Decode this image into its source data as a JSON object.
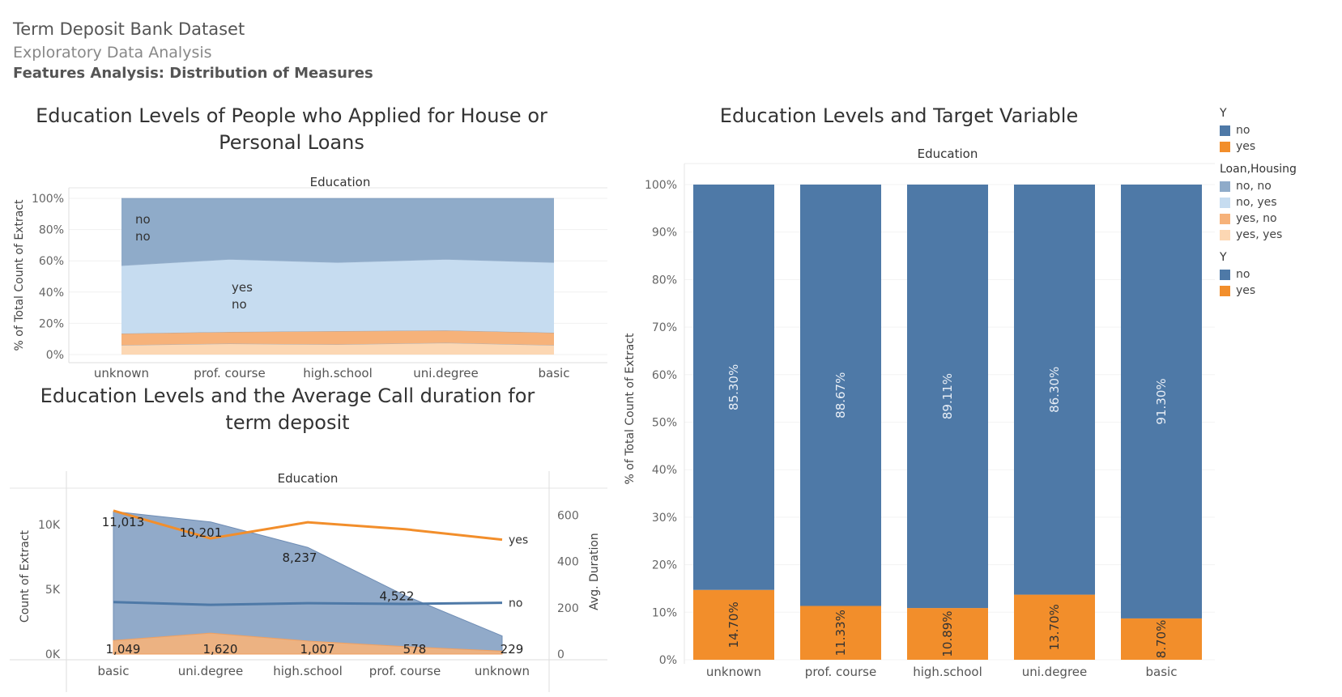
{
  "header": {
    "title": "Term Deposit Bank Dataset",
    "subtitle": "Exploratory Data Analysis",
    "section": "Features Analysis: Distribution of Measures"
  },
  "colors": {
    "no": "#4e79a7",
    "yes": "#f28e2b",
    "no_no": "#8fabc9",
    "no_yes": "#c6dcf0",
    "yes_no": "#f6b27a",
    "yes_yes": "#fcd7b3"
  },
  "legend": {
    "groups": [
      {
        "title": "Y",
        "items": [
          {
            "label": "no",
            "color": "#4e79a7"
          },
          {
            "label": "yes",
            "color": "#f28e2b"
          }
        ]
      },
      {
        "title": "Loan,Housing",
        "items": [
          {
            "label": "no, no",
            "color": "#8fabc9"
          },
          {
            "label": "no, yes",
            "color": "#c6dcf0"
          },
          {
            "label": "yes, no",
            "color": "#f6b27a"
          },
          {
            "label": "yes, yes",
            "color": "#fcd7b3"
          }
        ]
      },
      {
        "title": "Y",
        "items": [
          {
            "label": "no",
            "color": "#4e79a7"
          },
          {
            "label": "yes",
            "color": "#f28e2b"
          }
        ]
      }
    ]
  },
  "chart_data": [
    {
      "type": "area",
      "title": "Education Levels of People who Applied for House or Personal Loans",
      "xheader": "Education",
      "ylabel": "% of Total Count of Extract",
      "categories": [
        "unknown",
        "prof. course",
        "high.school",
        "uni.degree",
        "basic"
      ],
      "yticks": [
        "0%",
        "20%",
        "40%",
        "60%",
        "80%",
        "100%"
      ],
      "ylim": [
        0,
        100
      ],
      "series": [
        {
          "name": "yes, yes",
          "values": [
            6,
            7,
            6.5,
            7.5,
            6
          ]
        },
        {
          "name": "yes, no",
          "values": [
            7.5,
            7.5,
            8.5,
            8,
            8
          ]
        },
        {
          "name": "no, yes",
          "values": [
            43.5,
            46.5,
            44,
            45.5,
            45
          ]
        },
        {
          "name": "no, no",
          "values": [
            43,
            39,
            41,
            39,
            41
          ]
        }
      ],
      "annotations": [
        {
          "lines": [
            "no",
            "no"
          ]
        },
        {
          "lines": [
            "yes",
            "no"
          ]
        }
      ]
    },
    {
      "type": "area",
      "title": "Education Levels and the Average Call duration for  term deposit",
      "xheader": "Education",
      "ylabel": "Count of Extract",
      "y2label": "Avg. Duration",
      "categories": [
        "basic",
        "uni.degree",
        "high.school",
        "prof. course",
        "unknown"
      ],
      "yticks": [
        "0K",
        "5K",
        "10K"
      ],
      "ylim": [
        0,
        12500
      ],
      "y2ticks": [
        "0",
        "200",
        "400",
        "600"
      ],
      "y2lim": [
        0,
        700
      ],
      "area_series": [
        {
          "name": "no",
          "values": [
            11013,
            10201,
            8237,
            4522,
            1400
          ],
          "labels": [
            "11,013",
            "10,201",
            "8,237",
            "4,522",
            ""
          ]
        },
        {
          "name": "yes",
          "values": [
            1049,
            1620,
            1007,
            578,
            229
          ],
          "labels": [
            "1,049",
            "1,620",
            "1,007",
            "578",
            "229"
          ]
        }
      ],
      "line_series": [
        {
          "name": "yes",
          "values": [
            620,
            500,
            570,
            540,
            495
          ]
        },
        {
          "name": "no",
          "values": [
            225,
            213,
            220,
            217,
            222
          ]
        }
      ]
    },
    {
      "type": "bar",
      "title": "Education Levels and Target Variable",
      "xheader": "Education",
      "ylabel": "% of Total Count of Extract",
      "categories": [
        "unknown",
        "prof. course",
        "high.school",
        "uni.degree",
        "basic"
      ],
      "yticks": [
        "0%",
        "10%",
        "20%",
        "30%",
        "40%",
        "50%",
        "60%",
        "70%",
        "80%",
        "90%",
        "100%"
      ],
      "ylim": [
        0,
        100
      ],
      "series": [
        {
          "name": "yes",
          "values": [
            14.7,
            11.33,
            10.89,
            13.7,
            8.7
          ],
          "labels": [
            "14.70%",
            "11.33%",
            "10.89%",
            "13.70%",
            "8.70%"
          ]
        },
        {
          "name": "no",
          "values": [
            85.3,
            88.67,
            89.11,
            86.3,
            91.3
          ],
          "labels": [
            "85.30%",
            "88.67%",
            "89.11%",
            "86.30%",
            "91.30%"
          ]
        }
      ]
    }
  ]
}
